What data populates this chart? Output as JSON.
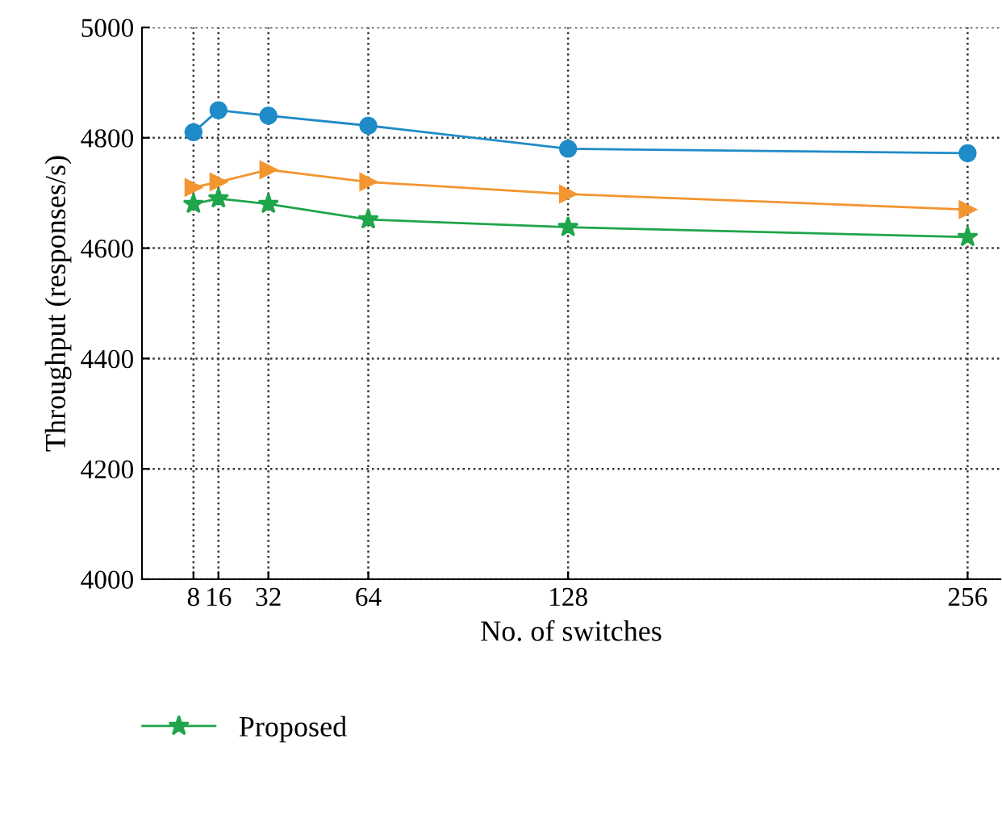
{
  "chart_data": {
    "type": "line",
    "xlabel": "No. of switches",
    "ylabel": "Throughput (responses/s)",
    "x": [
      8,
      16,
      32,
      64,
      128,
      256
    ],
    "xlim": [
      -8.5,
      266.5
    ],
    "xticks": [
      8,
      16,
      32,
      64,
      128,
      256
    ],
    "ylim": [
      4000,
      5000
    ],
    "yticks": [
      4000,
      4200,
      4400,
      4600,
      4800,
      5000
    ],
    "grid": true,
    "legend": "bottom",
    "series": [
      {
        "color": "#1f8bc8",
        "marker": "circle",
        "values": [
          4810,
          4850,
          4840,
          4822,
          4780,
          4772
        ]
      },
      {
        "color": "#f39530",
        "marker": "triangle",
        "values": [
          4710,
          4720,
          4742,
          4720,
          4698,
          4670
        ]
      },
      {
        "name": "Proposed",
        "color": "#1fa54a",
        "marker": "star",
        "values": [
          4680,
          4690,
          4680,
          4652,
          4638,
          4620
        ]
      }
    ]
  }
}
